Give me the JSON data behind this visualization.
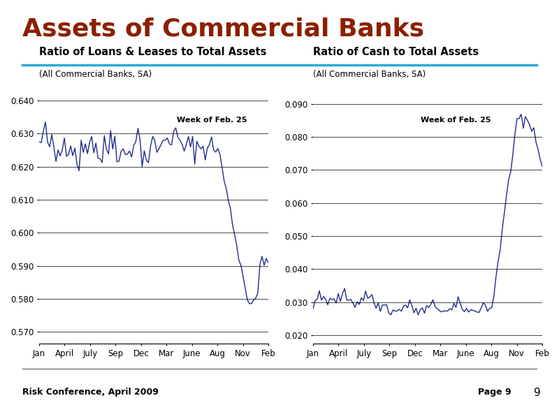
{
  "title": "Assets of Commercial Banks",
  "title_color": "#8B2000",
  "title_fontsize": 26,
  "separator_color": "#29ABD4",
  "background_color": "#FFFFFF",
  "footer_text": "Risk Conference, April 2009",
  "footer_page": "Page 9",
  "page_num": "9",
  "left_chart": {
    "title": "Ratio of Loans & Leases to Total Assets",
    "subtitle": "(All Commercial Banks, SA)",
    "annotation": "Week of Feb. 25",
    "yticks": [
      0.57,
      0.58,
      0.59,
      0.6,
      0.61,
      0.62,
      0.63,
      0.64
    ],
    "ylim": [
      0.5665,
      0.6425
    ],
    "xtick_labels": [
      "Jan",
      "April",
      "July",
      "Sep",
      "Dec",
      "Mar",
      "June",
      "Aug",
      "Nov",
      "Feb"
    ],
    "line_color": "#1F2D8A",
    "grid_color": "#000000"
  },
  "right_chart": {
    "title": "Ratio of Cash to Total Assets",
    "subtitle": "(All Commercial Banks, SA)",
    "annotation": "Week of Feb. 25",
    "yticks": [
      0.02,
      0.03,
      0.04,
      0.05,
      0.06,
      0.07,
      0.08,
      0.09
    ],
    "ylim": [
      0.0175,
      0.0935
    ],
    "xtick_labels": [
      "Jan",
      "April",
      "July",
      "Sep",
      "Dec",
      "Mar",
      "June",
      "Aug",
      "Nov",
      "Feb"
    ],
    "line_color": "#1F2D8A",
    "grid_color": "#000000"
  }
}
